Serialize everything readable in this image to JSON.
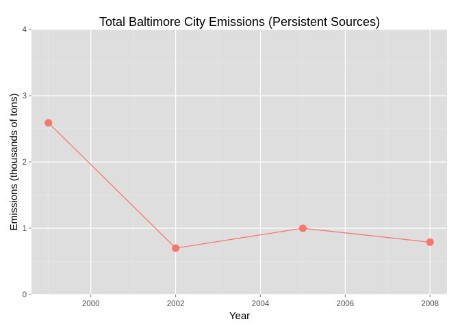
{
  "chart_data": {
    "type": "line",
    "title": "Total Baltimore City Emissions (Persistent Sources)",
    "xlabel": "Year",
    "ylabel": "Emissions (thousands of tons)",
    "xlim": [
      1998.6,
      2008.4
    ],
    "ylim": [
      0,
      4
    ],
    "x_ticks": [
      2000,
      2002,
      2004,
      2006,
      2008
    ],
    "y_ticks": [
      0,
      1,
      2,
      3,
      4
    ],
    "x_tick_labels": [
      "2000",
      "2002",
      "2004",
      "2006",
      "2008"
    ],
    "y_tick_labels": [
      "0",
      "1",
      "2",
      "3",
      "4"
    ],
    "grid": true,
    "series": [
      {
        "x": [
          1999,
          2002,
          2005,
          2008
        ],
        "y": [
          2.59,
          0.7,
          1.0,
          0.79
        ],
        "color": "#F8766D"
      }
    ],
    "colors": {
      "panel_background": "#DEDEDE",
      "grid_major": "#FFFFFF",
      "grid_minor": "#EBEBEB",
      "tick_text": "#4D4D4D",
      "series": "#F8766D"
    }
  }
}
